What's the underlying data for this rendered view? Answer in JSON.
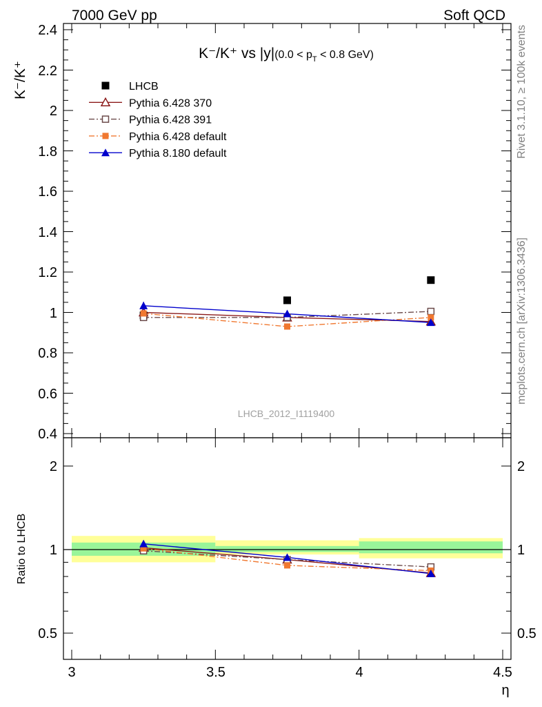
{
  "header": {
    "left": "7000 GeV pp",
    "right": "Soft QCD"
  },
  "side_labels": {
    "rivet": "Rivet 3.1.10, ≥ 100k events",
    "mcplots": "mcplots.cern.ch [arXiv:1306.3436]"
  },
  "chart_data": {
    "type": "scatter",
    "title": "K⁻/K⁺ vs |y|(0.0 < p_T < 0.8 GeV)",
    "title_main": "K⁻/K⁺ vs |y|",
    "title_sub": "(0.0 < p",
    "title_sub_T": "T",
    "title_sub_end": " < 0.8 GeV)",
    "ylabel": "K⁻/K⁺",
    "xlabel": "η",
    "watermark": "LHCB_2012_I1119400",
    "xlim": [
      3.0,
      4.5
    ],
    "ylim": [
      0.4,
      2.45
    ],
    "x_ticks": [
      "3",
      "3.5",
      "4",
      "4.5"
    ],
    "y_ticks": [
      "0.4",
      "0.6",
      "0.8",
      "1",
      "1.2",
      "1.4",
      "1.6",
      "1.8",
      "2",
      "2.2",
      "2.4"
    ],
    "x": [
      3.25,
      3.75,
      4.25
    ],
    "bin_edges": [
      3.0,
      3.5,
      4.0,
      4.5
    ],
    "series": [
      {
        "name": "LHCB",
        "values": [
          0.985,
          1.06,
          1.16
        ],
        "color": "#000000",
        "marker": "square-filled",
        "line": "none"
      },
      {
        "name": "Pythia 6.428 370",
        "values": [
          1.0,
          0.975,
          0.955
        ],
        "errors": [
          0.01,
          0.012,
          0.013
        ],
        "color": "#8b1a1a",
        "marker": "triangle-open",
        "line": "solid"
      },
      {
        "name": "Pythia 6.428 391",
        "values": [
          0.975,
          0.975,
          1.005
        ],
        "errors": [
          0.01,
          0.012,
          0.013
        ],
        "color": "#6b4a4a",
        "marker": "square-open",
        "line": "dashdot"
      },
      {
        "name": "Pythia 6.428 default",
        "values": [
          0.995,
          0.93,
          0.975
        ],
        "errors": [
          0.01,
          0.015,
          0.013
        ],
        "color": "#f07830",
        "marker": "square-filled-small",
        "line": "dashdot"
      },
      {
        "name": "Pythia 8.180 default",
        "values": [
          1.033,
          0.993,
          0.95
        ],
        "errors": [
          0.02,
          0.015,
          0.012
        ],
        "color": "#0000cc",
        "marker": "triangle-filled",
        "line": "solid"
      }
    ],
    "ratio": {
      "ylabel": "Ratio to LHCB",
      "ylim": [
        0.37,
        2.3
      ],
      "log": true,
      "y_ticks": [
        "0.5",
        "1",
        "2"
      ],
      "band_inner": [
        [
          0.95,
          1.06
        ],
        [
          0.98,
          1.03
        ],
        [
          0.97,
          1.07
        ]
      ],
      "band_outer": [
        [
          0.9,
          1.12
        ],
        [
          0.96,
          1.08
        ],
        [
          0.93,
          1.1
        ]
      ],
      "series": [
        {
          "name": "Pythia 6.428 370",
          "values": [
            1.015,
            0.92,
            0.823
          ]
        },
        {
          "name": "Pythia 6.428 391",
          "values": [
            0.99,
            0.92,
            0.866
          ]
        },
        {
          "name": "Pythia 6.428 default",
          "values": [
            1.01,
            0.877,
            0.84
          ]
        },
        {
          "name": "Pythia 8.180 default",
          "values": [
            1.049,
            0.937,
            0.819
          ]
        }
      ]
    }
  }
}
